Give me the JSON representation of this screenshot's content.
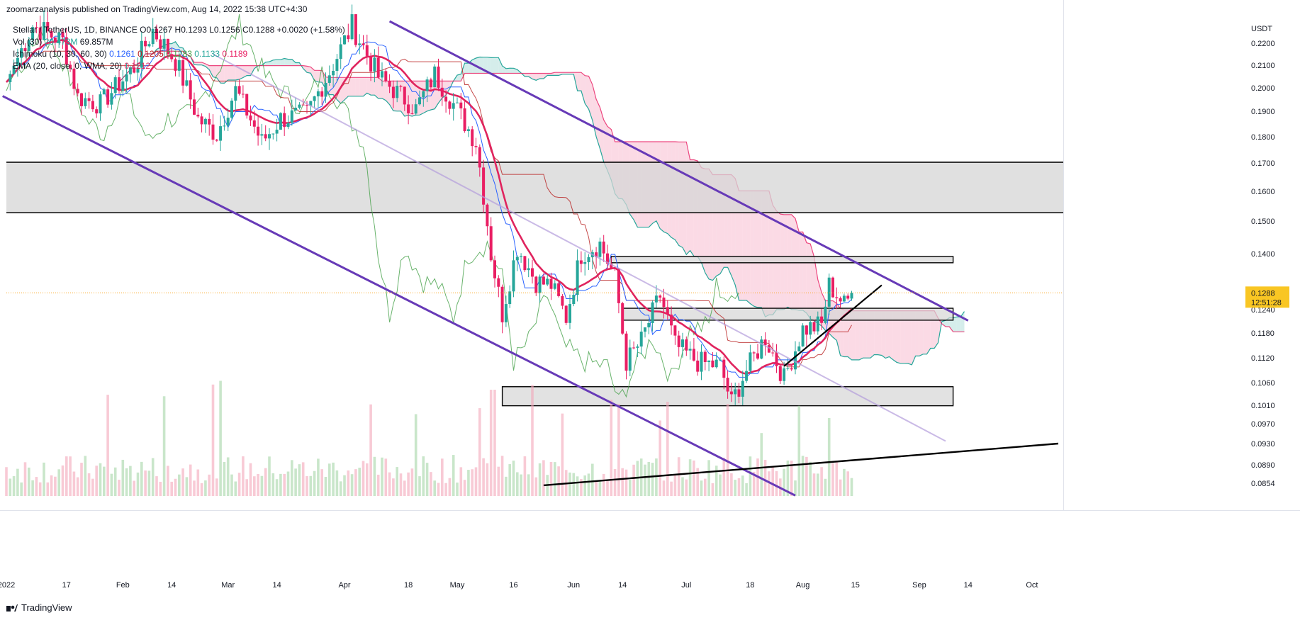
{
  "header": {
    "published_by": "zoomarzanalysis published on TradingView.com, Aug 14, 2022 15:38 UTC+4:30"
  },
  "legend": {
    "symbol_line": "Stellar / TetherUS, 1D, BINANCE  O0.1267  H0.1293  L0.1256  C0.1288  +0.0020 (+1.58%)",
    "vol_label": "Vol (30)",
    "vol_value": "20.473M",
    "vol_ma": "69.857M",
    "ichimoku_label": "Ichimoku (10, 30, 60, 30)",
    "ichimoku_v1": "0.1261",
    "ichimoku_v2": "0.1205",
    "ichimoku_v3": "0.1283",
    "ichimoku_v4": "0.1133",
    "ichimoku_v5": "0.1189",
    "ema_label": "EMA (20, close, 0, WMA, 20)",
    "ema_value": "0.1212"
  },
  "footer": {
    "brand": "TradingView"
  },
  "colors": {
    "up": "#26a69a",
    "down": "#e91e63",
    "ema": "#e0245e",
    "tenkan": "#2962ff",
    "kijun": "#b71c1c",
    "lagging": "#43a047",
    "cloud_bear": "#f8bbd0",
    "cloud_bull": "#b2dfdb",
    "channel": "#673ab7",
    "zone": "#d6d6d6",
    "price_tag": "#f9c623"
  },
  "chart_data": {
    "type": "candlestick",
    "symbol": "Stellar / TetherUS",
    "interval": "1D",
    "exchange": "BINANCE",
    "currency": "USDT",
    "last_price": "0.1288",
    "countdown": "12:51:28",
    "y_ticks": [
      "0.2200",
      "0.2100",
      "0.2000",
      "0.1900",
      "0.1800",
      "0.1700",
      "0.1600",
      "0.1500",
      "0.1400",
      "0.1240",
      "0.1180",
      "0.1120",
      "0.1060",
      "0.1010",
      "0.0970",
      "0.0930",
      "0.0890",
      "0.0854"
    ],
    "x_ticks": [
      {
        "label": "2022",
        "date": "2022-01-01"
      },
      {
        "label": "17",
        "date": "2022-01-17"
      },
      {
        "label": "Feb",
        "date": "2022-02-01"
      },
      {
        "label": "14",
        "date": "2022-02-14"
      },
      {
        "label": "Mar",
        "date": "2022-03-01"
      },
      {
        "label": "14",
        "date": "2022-03-14"
      },
      {
        "label": "Apr",
        "date": "2022-04-01"
      },
      {
        "label": "18",
        "date": "2022-04-18"
      },
      {
        "label": "May",
        "date": "2022-05-01"
      },
      {
        "label": "16",
        "date": "2022-05-16"
      },
      {
        "label": "Jun",
        "date": "2022-06-01"
      },
      {
        "label": "14",
        "date": "2022-06-14"
      },
      {
        "label": "Jul",
        "date": "2022-07-01"
      },
      {
        "label": "18",
        "date": "2022-07-18"
      },
      {
        "label": "Aug",
        "date": "2022-08-01"
      },
      {
        "label": "15",
        "date": "2022-08-15"
      },
      {
        "label": "Sep",
        "date": "2022-09-01"
      },
      {
        "label": "14",
        "date": "2022-09-14"
      },
      {
        "label": "Oct",
        "date": "2022-10-01"
      }
    ],
    "price_path": [
      [
        "2022-01-01",
        0.2025
      ],
      [
        "2022-01-08",
        0.228
      ],
      [
        "2022-01-16",
        0.221
      ],
      [
        "2022-01-20",
        0.196
      ],
      [
        "2022-01-26",
        0.193
      ],
      [
        "2022-02-04",
        0.209
      ],
      [
        "2022-02-09",
        0.226
      ],
      [
        "2022-02-15",
        0.212
      ],
      [
        "2022-02-21",
        0.187
      ],
      [
        "2022-02-26",
        0.181
      ],
      [
        "2022-03-03",
        0.199
      ],
      [
        "2022-03-10",
        0.178
      ],
      [
        "2022-03-15",
        0.187
      ],
      [
        "2022-03-22",
        0.189
      ],
      [
        "2022-03-28",
        0.207
      ],
      [
        "2022-04-03",
        0.228
      ],
      [
        "2022-04-10",
        0.205
      ],
      [
        "2022-04-20",
        0.191
      ],
      [
        "2022-04-25",
        0.206
      ],
      [
        "2022-05-02",
        0.188
      ],
      [
        "2022-05-06",
        0.178
      ],
      [
        "2022-05-10",
        0.14
      ],
      [
        "2022-05-13",
        0.123
      ],
      [
        "2022-05-17",
        0.142
      ],
      [
        "2022-05-22",
        0.132
      ],
      [
        "2022-05-26",
        0.131
      ],
      [
        "2022-05-30",
        0.122
      ],
      [
        "2022-06-03",
        0.14
      ],
      [
        "2022-06-08",
        0.143
      ],
      [
        "2022-06-12",
        0.133
      ],
      [
        "2022-06-15",
        0.111
      ],
      [
        "2022-06-19",
        0.116
      ],
      [
        "2022-06-24",
        0.128
      ],
      [
        "2022-06-28",
        0.115
      ],
      [
        "2022-07-04",
        0.111
      ],
      [
        "2022-07-10",
        0.11
      ],
      [
        "2022-07-13",
        0.1015
      ],
      [
        "2022-07-17",
        0.109
      ],
      [
        "2022-07-22",
        0.117
      ],
      [
        "2022-07-27",
        0.107
      ],
      [
        "2022-08-01",
        0.119
      ],
      [
        "2022-08-06",
        0.12
      ],
      [
        "2022-08-08",
        0.131
      ],
      [
        "2022-08-12",
        0.1255
      ],
      [
        "2022-08-14",
        0.1288
      ]
    ],
    "horizontal_levels": [
      0.1703,
      0.1528
    ],
    "rectangles": [
      {
        "from": "2022-06-11",
        "to": "2022-09-10",
        "low": 0.1374,
        "high": 0.1392
      },
      {
        "from": "2022-06-14",
        "to": "2022-09-10",
        "low": 0.1213,
        "high": 0.1244
      },
      {
        "from": "2022-05-13",
        "to": "2022-09-10",
        "low": 0.1009,
        "high": 0.1051
      }
    ],
    "grid": false,
    "legend_position": "top-left"
  }
}
